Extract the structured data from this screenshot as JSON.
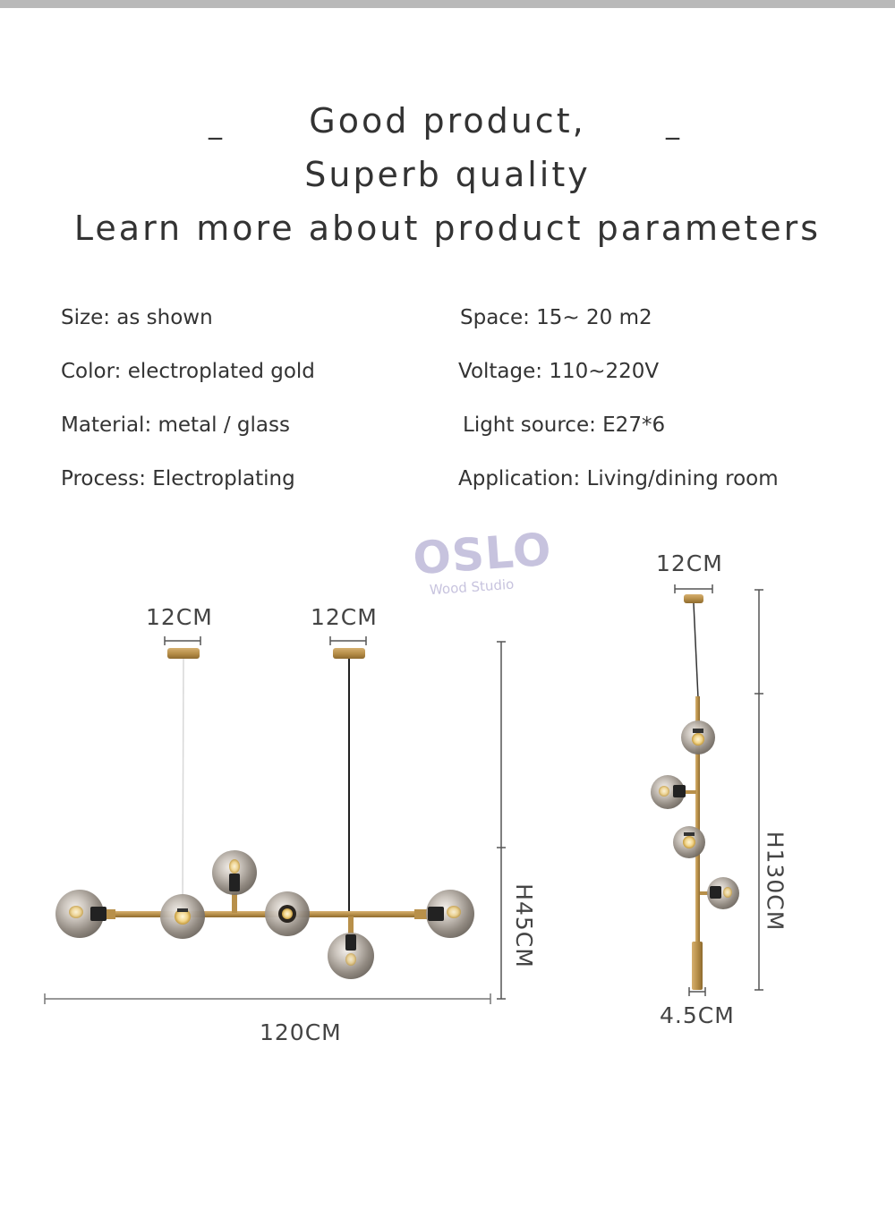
{
  "header": {
    "dash_left": "_",
    "dash_right": "_",
    "line1": "Good product,",
    "line2": "Superb quality",
    "line3": "Learn more about product parameters"
  },
  "specs": {
    "size": "Size: as shown",
    "color": "Color: electroplated gold",
    "material": "Material: metal / glass",
    "process": "Process: Electroplating",
    "space": "Space: 15~ 20 m2",
    "voltage": "Voltage: 110~220V",
    "light_source": "Light source: E27*6",
    "application": "Application: Living/dining room"
  },
  "watermark": {
    "name": "OSLO",
    "subtitle": "Wood Studio"
  },
  "dimensions": {
    "canopy_left": "12CM",
    "canopy_right": "12CM",
    "height_horizontal": "H45CM",
    "width_horizontal": "120CM",
    "canopy_vertical": "12CM",
    "height_vertical": "H130CM",
    "base_vertical": "4.5CM"
  },
  "colors": {
    "gold": "#b8904a",
    "glass": "#9a938c",
    "text": "#333333"
  }
}
